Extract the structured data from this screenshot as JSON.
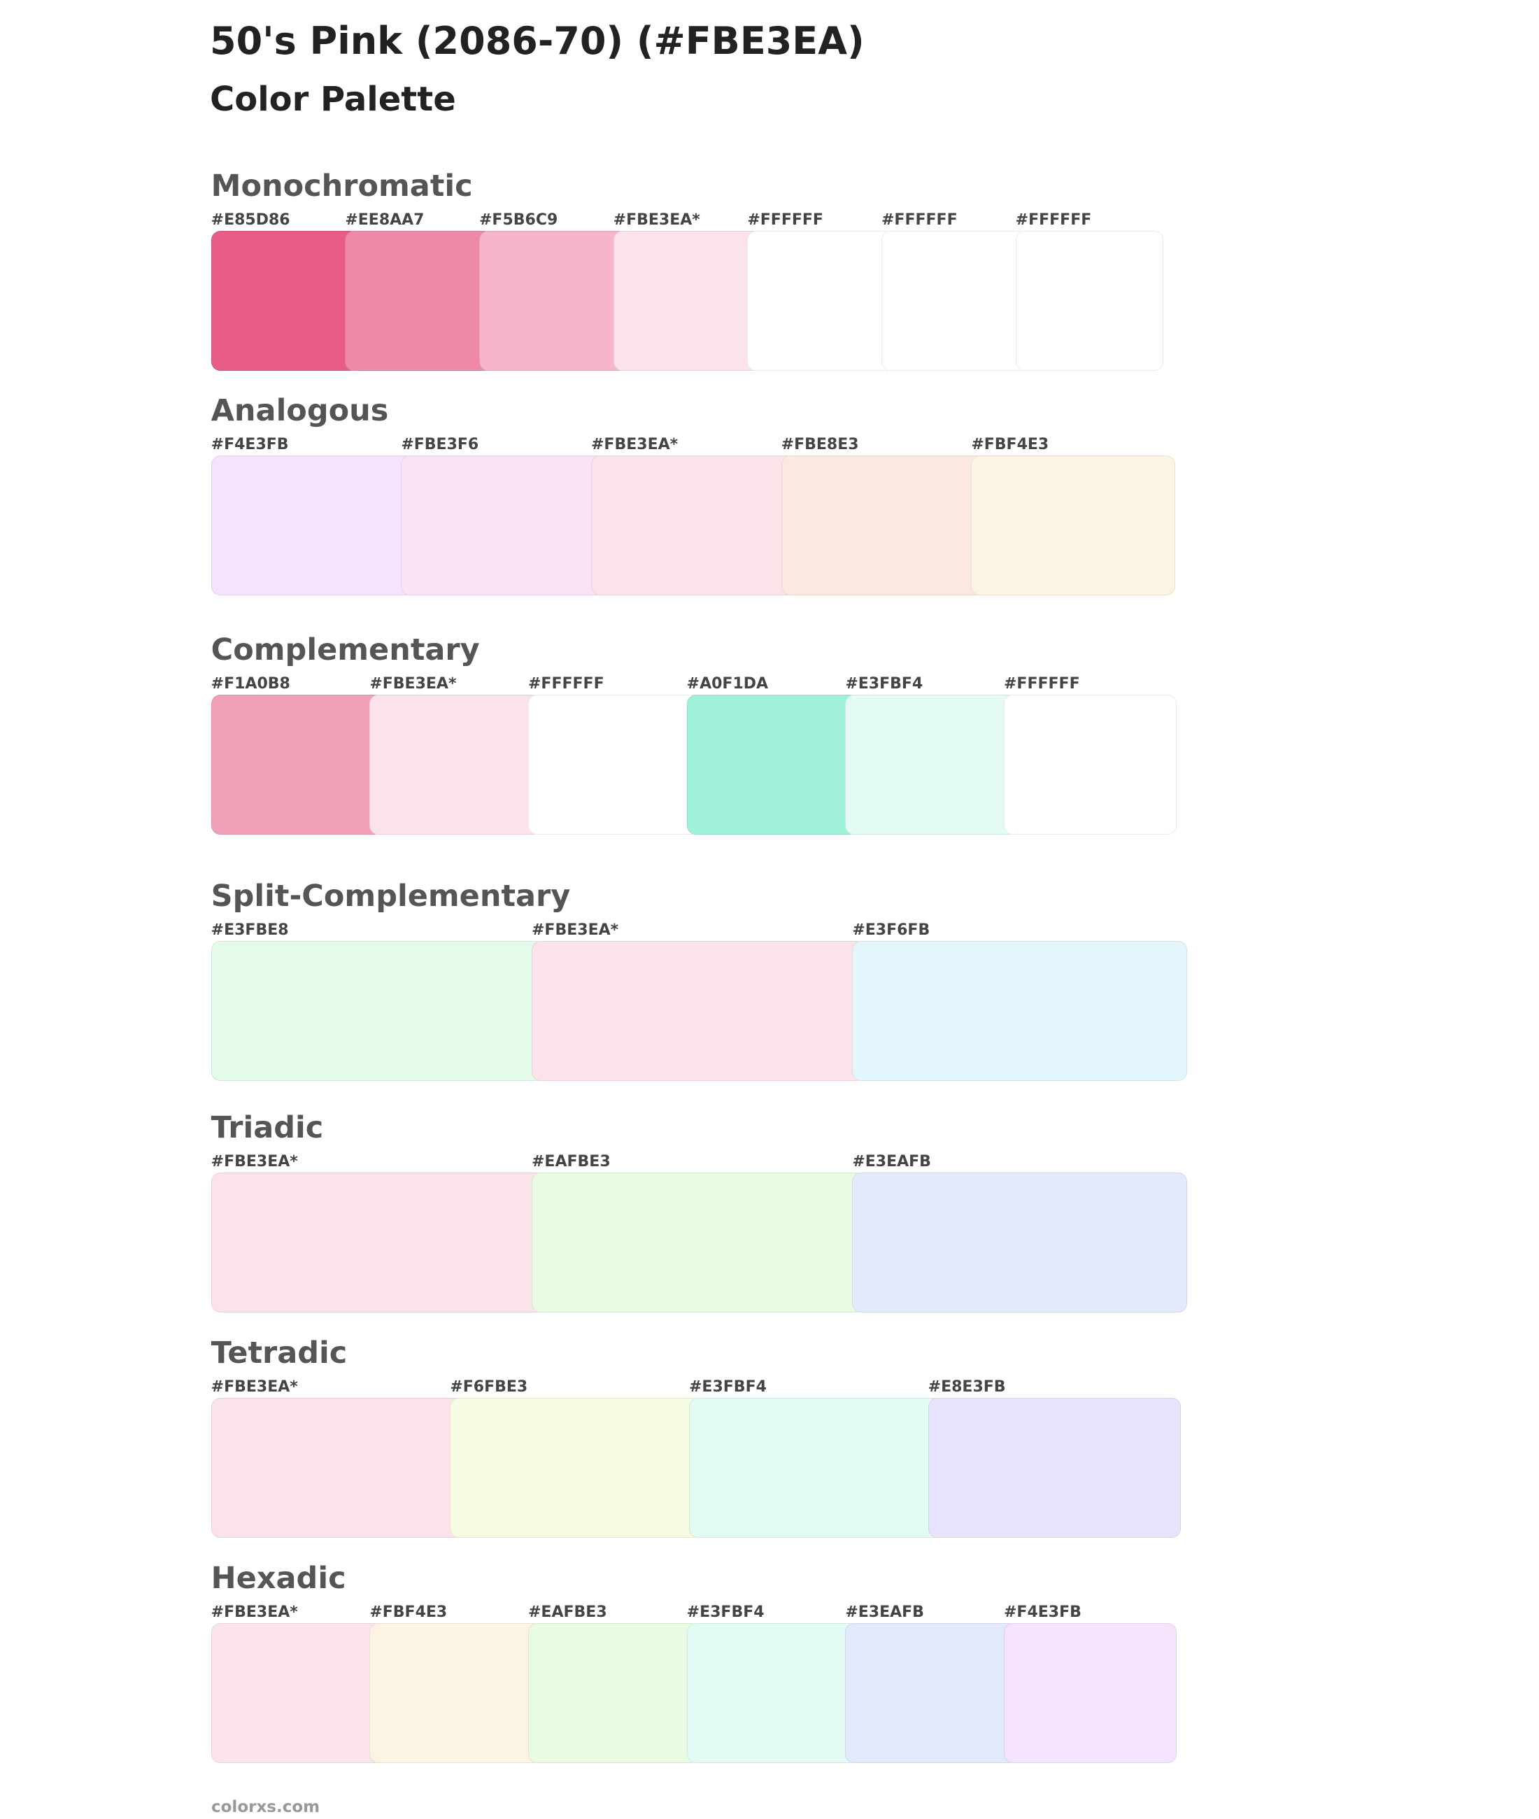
{
  "header": {
    "title": "50's Pink (2086-70) (#FBE3EA)",
    "subtitle": "Color Palette"
  },
  "sections": [
    {
      "name": "Monochromatic",
      "swatches": [
        {
          "label": "#E85D86",
          "color": "#E85D86"
        },
        {
          "label": "#EE8AA7",
          "color": "#EE8AA7"
        },
        {
          "label": "#F5B6C9",
          "color": "#F5B6C9"
        },
        {
          "label": "#FBE3EA*",
          "color": "#FBE3EA"
        },
        {
          "label": "#FFFFFF",
          "color": "#FFFFFF"
        },
        {
          "label": "#FFFFFF",
          "color": "#FFFFFF"
        },
        {
          "label": "#FFFFFF",
          "color": "#FFFFFF"
        }
      ]
    },
    {
      "name": "Analogous",
      "swatches": [
        {
          "label": "#F4E3FB",
          "color": "#F4E3FB"
        },
        {
          "label": "#FBE3F6",
          "color": "#FBE3F6"
        },
        {
          "label": "#FBE3EA*",
          "color": "#FBE3EA"
        },
        {
          "label": "#FBE8E3",
          "color": "#FBE8E3"
        },
        {
          "label": "#FBF4E3",
          "color": "#FBF4E3"
        }
      ]
    },
    {
      "name": "Complementary",
      "swatches": [
        {
          "label": "#F1A0B8",
          "color": "#F1A0B8"
        },
        {
          "label": "#FBE3EA*",
          "color": "#FBE3EA"
        },
        {
          "label": "#FFFFFF",
          "color": "#FFFFFF"
        },
        {
          "label": "#A0F1DA",
          "color": "#A0F1DA"
        },
        {
          "label": "#E3FBF4",
          "color": "#E3FBF4"
        },
        {
          "label": "#FFFFFF",
          "color": "#FFFFFF"
        }
      ]
    },
    {
      "name": "Split-Complementary",
      "swatches": [
        {
          "label": "#E3FBE8",
          "color": "#E3FBE8"
        },
        {
          "label": "#FBE3EA*",
          "color": "#FBE3EA"
        },
        {
          "label": "#E3F6FB",
          "color": "#E3F6FB"
        }
      ]
    },
    {
      "name": "Triadic",
      "swatches": [
        {
          "label": "#FBE3EA*",
          "color": "#FBE3EA"
        },
        {
          "label": "#EAFBE3",
          "color": "#EAFBE3"
        },
        {
          "label": "#E3EAFB",
          "color": "#E3EAFB"
        }
      ]
    },
    {
      "name": "Tetradic",
      "swatches": [
        {
          "label": "#FBE3EA*",
          "color": "#FBE3EA"
        },
        {
          "label": "#F6FBE3",
          "color": "#F6FBE3"
        },
        {
          "label": "#E3FBF4",
          "color": "#E3FBF4"
        },
        {
          "label": "#E8E3FB",
          "color": "#E8E3FB"
        }
      ]
    },
    {
      "name": "Hexadic",
      "swatches": [
        {
          "label": "#FBE3EA*",
          "color": "#FBE3EA"
        },
        {
          "label": "#FBF4E3",
          "color": "#FBF4E3"
        },
        {
          "label": "#EAFBE3",
          "color": "#EAFBE3"
        },
        {
          "label": "#E3FBF4",
          "color": "#E3FBF4"
        },
        {
          "label": "#E3EAFB",
          "color": "#E3EAFB"
        },
        {
          "label": "#F4E3FB",
          "color": "#F4E3FB"
        }
      ]
    }
  ],
  "footer": "colorxs.com"
}
